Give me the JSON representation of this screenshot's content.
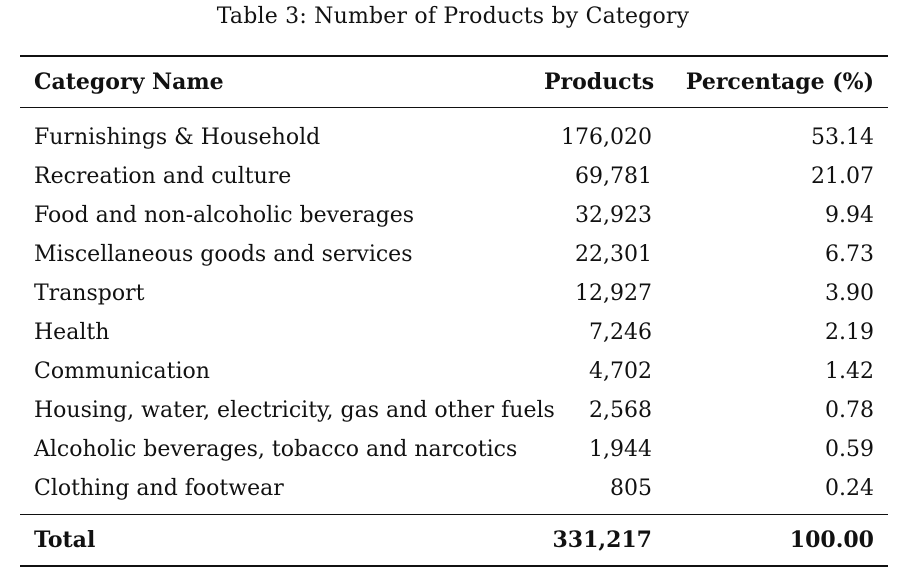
{
  "caption": "Table 3: Number of Products by Category",
  "table": {
    "headers": {
      "category": "Category Name",
      "products": "Products",
      "percentage": "Percentage (%)"
    },
    "rows": [
      {
        "category": "Furnishings & Household",
        "products": "176,020",
        "percentage": "53.14"
      },
      {
        "category": "Recreation and culture",
        "products": "69,781",
        "percentage": "21.07"
      },
      {
        "category": "Food and non-alcoholic beverages",
        "products": "32,923",
        "percentage": "9.94"
      },
      {
        "category": "Miscellaneous goods and services",
        "products": "22,301",
        "percentage": "6.73"
      },
      {
        "category": "Transport",
        "products": "12,927",
        "percentage": "3.90"
      },
      {
        "category": "Health",
        "products": "7,246",
        "percentage": "2.19"
      },
      {
        "category": "Communication",
        "products": "4,702",
        "percentage": "1.42"
      },
      {
        "category": "Housing, water, electricity, gas and other fuels",
        "products": "2,568",
        "percentage": "0.78"
      },
      {
        "category": "Alcoholic beverages, tobacco and narcotics",
        "products": "1,944",
        "percentage": "0.59"
      },
      {
        "category": "Clothing and footwear",
        "products": "805",
        "percentage": "0.24"
      }
    ],
    "total": {
      "label": "Total",
      "products": "331,217",
      "percentage": "100.00"
    }
  }
}
